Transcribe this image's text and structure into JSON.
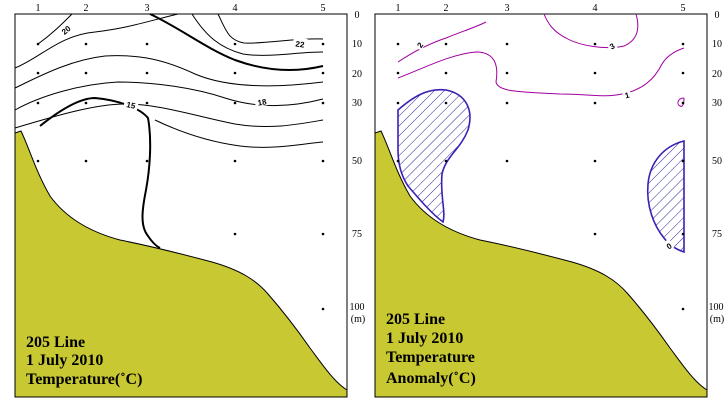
{
  "colors": {
    "seabed": "#c8c832",
    "temperature_contour": "#000000",
    "anomaly_positive": "#a000a0",
    "anomaly_negative": "#3c1fb4",
    "hatch": "#2a2a9a"
  },
  "stations": [
    "1",
    "2",
    "3",
    "4",
    "5"
  ],
  "depths": [
    "0",
    "10",
    "20",
    "30",
    "50",
    "75",
    "100"
  ],
  "depth_unit": "(m)",
  "left_panel": {
    "title_lines": [
      "205 Line",
      "1 July 2010",
      "Temperature(˚C)"
    ],
    "contour_labels": [
      "20",
      "22",
      "18",
      "15"
    ]
  },
  "right_panel": {
    "title_lines": [
      "205 Line",
      "1 July 2010",
      "Temperature",
      "Anomaly(˚C)"
    ],
    "contour_labels": [
      "2",
      "3",
      "1",
      "0",
      "0"
    ]
  }
}
